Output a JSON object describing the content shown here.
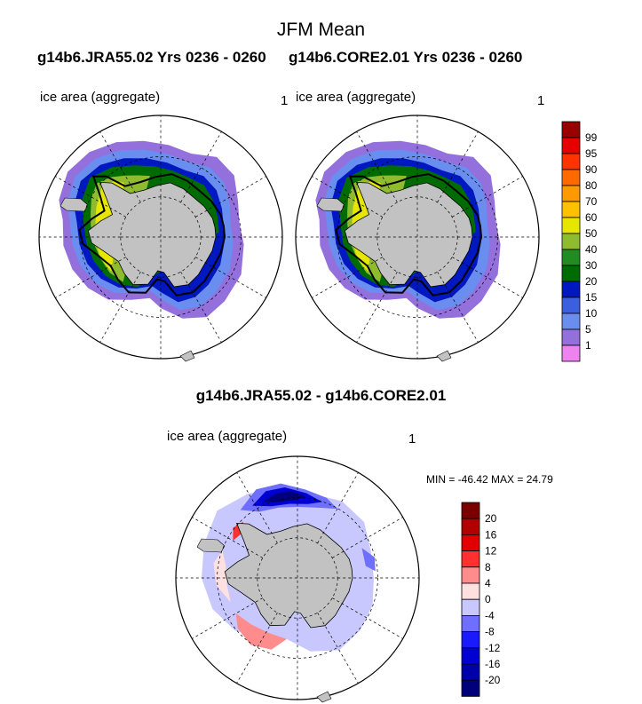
{
  "figure": {
    "title": "JFM Mean",
    "left_subtitle": "g14b6.JRA55.02  Yrs 0236 - 0260",
    "right_subtitle": "g14b6.CORE2.01  Yrs 0236 - 0260",
    "diff_title": "g14b6.JRA55.02 - g14b6.CORE2.01",
    "minmax_text": "MIN = -46.42 MAX =  24.79"
  },
  "panels": [
    {
      "label": "ice area  (aggregate)",
      "number": "1"
    },
    {
      "label": "ice area  (aggregate)",
      "number": "1"
    },
    {
      "label": "ice area  (aggregate)",
      "number": "1"
    }
  ],
  "colors": {
    "land": "#c2c2c2",
    "ocean": "#ffffff",
    "obs_contour": "#000000"
  },
  "chart_data": [
    {
      "type": "heatmap",
      "title": "ice area  (aggregate)",
      "run": "g14b6.JRA55.02",
      "projection": "south polar stereographic",
      "levels": [
        1,
        5,
        10,
        15,
        20,
        30,
        40,
        50,
        60,
        70,
        80,
        90,
        95,
        99
      ],
      "level_colors": [
        "#ee82ee",
        "#9370db",
        "#6a8ef0",
        "#3b5fe0",
        "#0018c0",
        "#006b00",
        "#228b22",
        "#8fbc2f",
        "#e6e600",
        "#ffc000",
        "#ff9900",
        "#ff6a00",
        "#ff3300",
        "#e60000",
        "#990000"
      ]
    },
    {
      "type": "heatmap",
      "title": "ice area  (aggregate)",
      "run": "g14b6.CORE2.01",
      "projection": "south polar stereographic",
      "levels": [
        1,
        5,
        10,
        15,
        20,
        30,
        40,
        50,
        60,
        70,
        80,
        90,
        95,
        99
      ],
      "level_colors": [
        "#ee82ee",
        "#9370db",
        "#6a8ef0",
        "#3b5fe0",
        "#0018c0",
        "#006b00",
        "#228b22",
        "#8fbc2f",
        "#e6e600",
        "#ffc000",
        "#ff9900",
        "#ff6a00",
        "#ff3300",
        "#e60000",
        "#990000"
      ]
    },
    {
      "type": "heatmap",
      "title": "ice area  (aggregate)",
      "run": "g14b6.JRA55.02 - g14b6.CORE2.01",
      "projection": "south polar stereographic",
      "min": -46.42,
      "max": 24.79,
      "levels": [
        -20,
        -16,
        -12,
        -8,
        -4,
        0,
        4,
        8,
        12,
        16,
        20
      ],
      "level_colors": [
        "#00007a",
        "#0000a8",
        "#0000d0",
        "#1a1aff",
        "#6e6eff",
        "#c8c8ff",
        "#ffe0e0",
        "#ff8c8c",
        "#ff3030",
        "#e00000",
        "#b00000",
        "#7a0000"
      ]
    }
  ]
}
